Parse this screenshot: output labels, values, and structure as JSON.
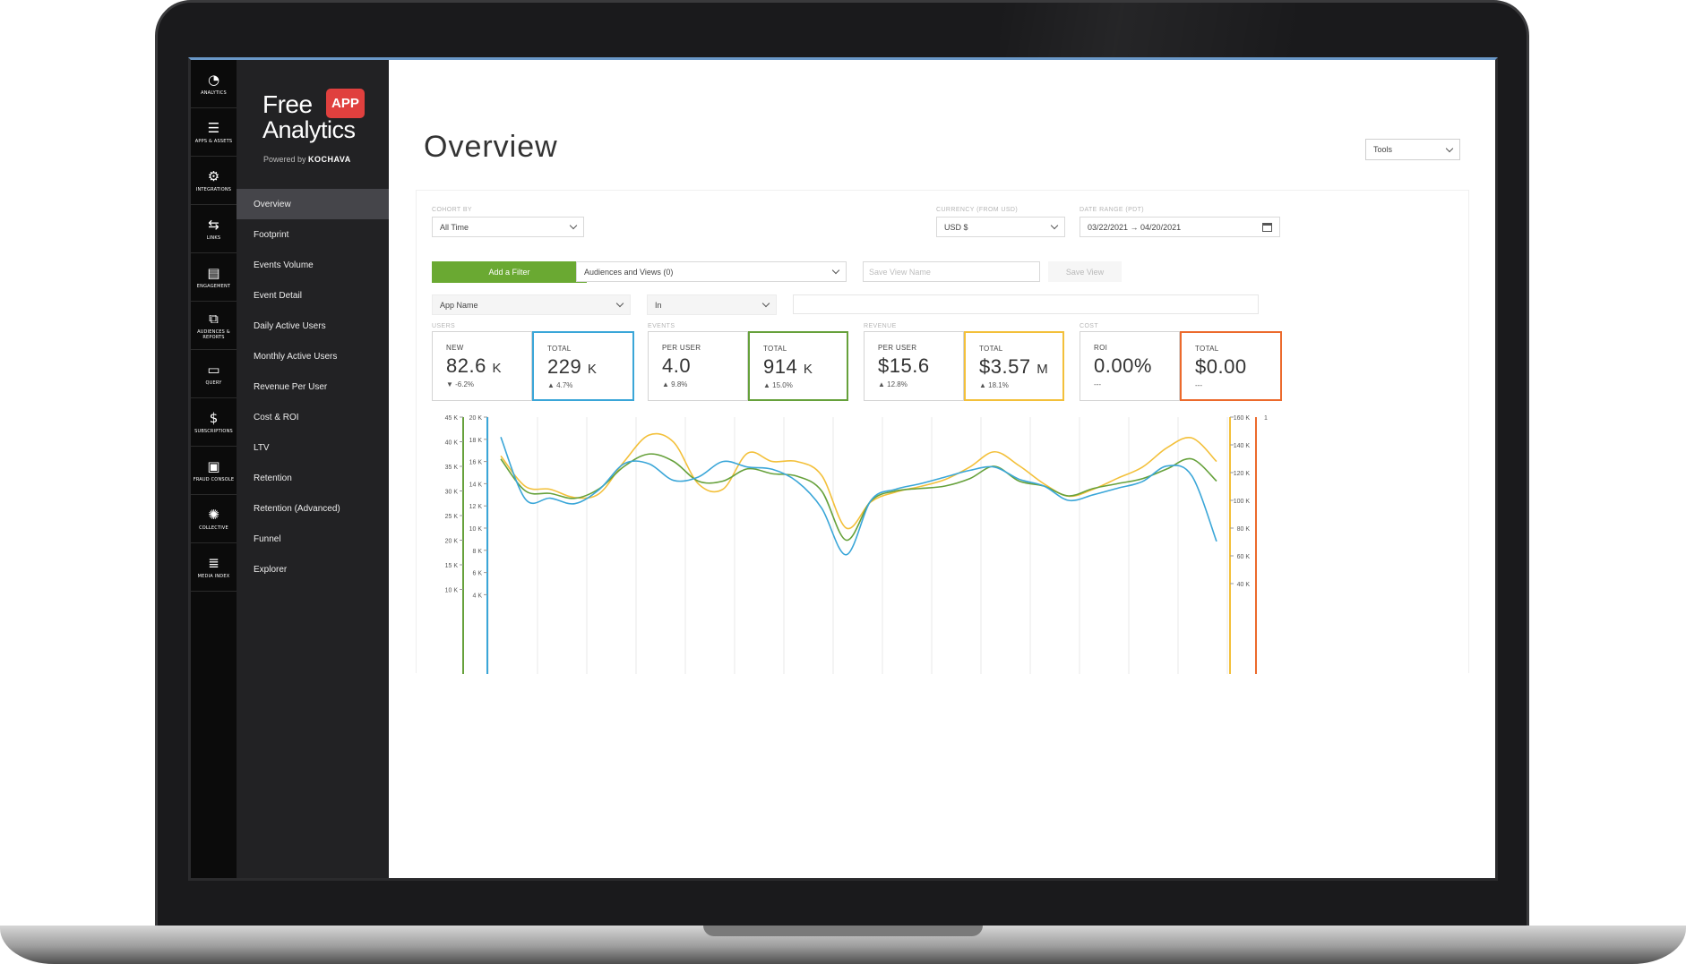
{
  "rail": [
    {
      "icon": "dashboard-icon",
      "glyph": "◔",
      "label": "ANALYTICS"
    },
    {
      "icon": "list-icon",
      "glyph": "☰",
      "label": "APPS & ASSETS"
    },
    {
      "icon": "gear-icon",
      "glyph": "⚙",
      "label": "INTEGRATIONS"
    },
    {
      "icon": "links-icon",
      "glyph": "⇆",
      "label": "LINKS"
    },
    {
      "icon": "chat-icon",
      "glyph": "▤",
      "label": "ENGAGEMENT"
    },
    {
      "icon": "hierarchy-icon",
      "glyph": "⧉",
      "label": "AUDIENCES & REPORTS"
    },
    {
      "icon": "query-icon",
      "glyph": "▭",
      "label": "QUERY"
    },
    {
      "icon": "dollar-icon",
      "glyph": "$",
      "label": "SUBSCRIPTIONS"
    },
    {
      "icon": "fraud-icon",
      "glyph": "▣",
      "label": "FRAUD CONSOLE"
    },
    {
      "icon": "collective-icon",
      "glyph": "✺",
      "label": "COLLECTIVE"
    },
    {
      "icon": "media-index-icon",
      "glyph": "≣",
      "label": "MEDIA INDEX"
    }
  ],
  "brand": {
    "free": "Free",
    "analytics": "Analytics",
    "badge": "APP",
    "powered": "Powered by",
    "company": "KOCHAVA"
  },
  "nav": [
    "Overview",
    "Footprint",
    "Events Volume",
    "Event Detail",
    "Daily Active Users",
    "Monthly Active Users",
    "Revenue Per User",
    "Cost & ROI",
    "LTV",
    "Retention",
    "Retention (Advanced)",
    "Funnel",
    "Explorer"
  ],
  "header": {
    "title": "Overview",
    "tools": "Tools"
  },
  "filters": {
    "cohort_label": "COHORT BY",
    "cohort_value": "All Time",
    "currency_label": "CURRENCY (FROM USD)",
    "currency_value": "USD $",
    "date_label": "DATE RANGE (PDT)",
    "date_value": "03/22/2021 → 04/20/2021",
    "add_filter": "Add a Filter",
    "audiences": "Audiences and Views (0)",
    "save_view_placeholder": "Save View Name",
    "save_view": "Save View",
    "app_name": "App Name",
    "operator": "In"
  },
  "groups": {
    "users": "USERS",
    "events": "EVENTS",
    "revenue": "REVENUE",
    "cost": "COST"
  },
  "stats": [
    {
      "label": "NEW",
      "value": "82.6",
      "unit": "K",
      "change": "▼ -6.2%"
    },
    {
      "label": "TOTAL",
      "value": "229",
      "unit": "K",
      "change": "▲ 4.7%"
    },
    {
      "label": "PER USER",
      "value": "4.0",
      "unit": "",
      "change": "▲ 9.8%"
    },
    {
      "label": "TOTAL",
      "value": "914",
      "unit": "K",
      "change": "▲ 15.0%"
    },
    {
      "label": "PER USER",
      "value": "$15.6",
      "unit": "",
      "change": "▲ 12.8%"
    },
    {
      "label": "TOTAL",
      "value": "$3.57",
      "unit": "M",
      "change": "▲ 18.1%"
    },
    {
      "label": "ROI",
      "value": "0.00%",
      "unit": "",
      "change": "---"
    },
    {
      "label": "TOTAL",
      "value": "$0.00",
      "unit": "",
      "change": "---"
    }
  ],
  "colors": {
    "blue": "#3aa6d8",
    "green": "#66a13b",
    "yellow": "#f3c03a",
    "orange": "#ec6a2c",
    "accent_green": "#6aa932",
    "sidebar": "#222224"
  },
  "chart_data": {
    "type": "line",
    "grid": true,
    "axes": {
      "left_outer": {
        "ticks": [
          "45 K",
          "40 K",
          "35 K",
          "30 K",
          "25 K",
          "20 K",
          "15 K",
          "10 K"
        ],
        "color": "#66a13b"
      },
      "left_inner": {
        "ticks": [
          "20 K",
          "18 K",
          "16 K",
          "14 K",
          "12 K",
          "10 K",
          "8 K",
          "6 K",
          "4 K"
        ],
        "color": "#3aa6d8"
      },
      "right_inner": {
        "ticks": [
          "160 K",
          "140 K",
          "120 K",
          "100 K",
          "80 K",
          "60 K",
          "40 K"
        ],
        "color": "#f3c03a"
      },
      "right_outer": {
        "ticks": [
          "1"
        ],
        "color": "#ec6a2c"
      }
    },
    "x": [
      0,
      1,
      2,
      3,
      4,
      5,
      6,
      7,
      8,
      9,
      10,
      11,
      12,
      13,
      14,
      15,
      16,
      17,
      18,
      19,
      20,
      21,
      22,
      23,
      24,
      25,
      26,
      27,
      28,
      29
    ],
    "series": [
      {
        "color": "#f3c03a",
        "values": [
          132,
          110,
          108,
          102,
          105,
          128,
          147,
          142,
          112,
          108,
          134,
          128,
          128,
          118,
          80,
          99,
          106,
          110,
          115,
          124,
          135,
          125,
          112,
          103,
          108,
          116,
          124,
          138,
          145,
          128
        ]
      },
      {
        "color": "#66a13b",
        "values": [
          36.5,
          30,
          29.5,
          28.5,
          30.5,
          35,
          37.5,
          36,
          32,
          32,
          34.5,
          33.5,
          33,
          30,
          20,
          28,
          30,
          30.5,
          31,
          32.5,
          35,
          32,
          31,
          29,
          30.5,
          31.5,
          32.5,
          34.5,
          36.5,
          32
        ]
      },
      {
        "color": "#3aa6d8",
        "values": [
          18.2,
          12.6,
          12.7,
          12.2,
          13.5,
          15.8,
          15.8,
          14.3,
          14.6,
          16,
          15.5,
          15.3,
          14.2,
          11.8,
          7.6,
          12.5,
          13.5,
          14,
          14.6,
          15.2,
          15.5,
          14.4,
          13.8,
          12.5,
          13,
          13.6,
          14.2,
          15.6,
          14.7,
          8.8
        ]
      }
    ]
  }
}
